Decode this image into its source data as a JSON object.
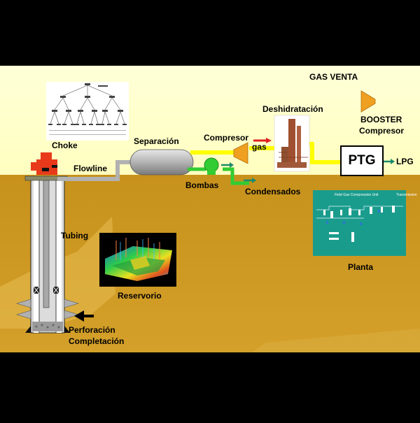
{
  "labels": {
    "gas_venta": "GAS VENTA",
    "booster_line1": "BOOSTER",
    "booster_line2": "Compresor",
    "deshidratacion": "Deshidratación",
    "compresor": "Compresor",
    "gas": "gas",
    "separacion": "Separación",
    "choke": "Choke",
    "flowline": "Flowline",
    "bombas": "Bombas",
    "condensados": "Condensados",
    "ptg": "PTG",
    "lpg": "LPG",
    "tubing": "Tubing",
    "reservorio": "Reservorio",
    "planta": "Planta",
    "perforacion": "Perforación",
    "completacion": "Completación",
    "plant_screen_title": "Field Gas Compression Unit",
    "plant_screen_sub": "Transmission"
  },
  "colors": {
    "sky": "#ffffcc",
    "ground": "#c8961e",
    "pipe_gray": "#b4b4b4",
    "gas_yellow": "#ffff00",
    "liquid_green": "#33cc33",
    "compressor_orange": "#f0a020",
    "plant_screen": "#1a9c8c",
    "wellhead_red": "#e83a1a"
  }
}
